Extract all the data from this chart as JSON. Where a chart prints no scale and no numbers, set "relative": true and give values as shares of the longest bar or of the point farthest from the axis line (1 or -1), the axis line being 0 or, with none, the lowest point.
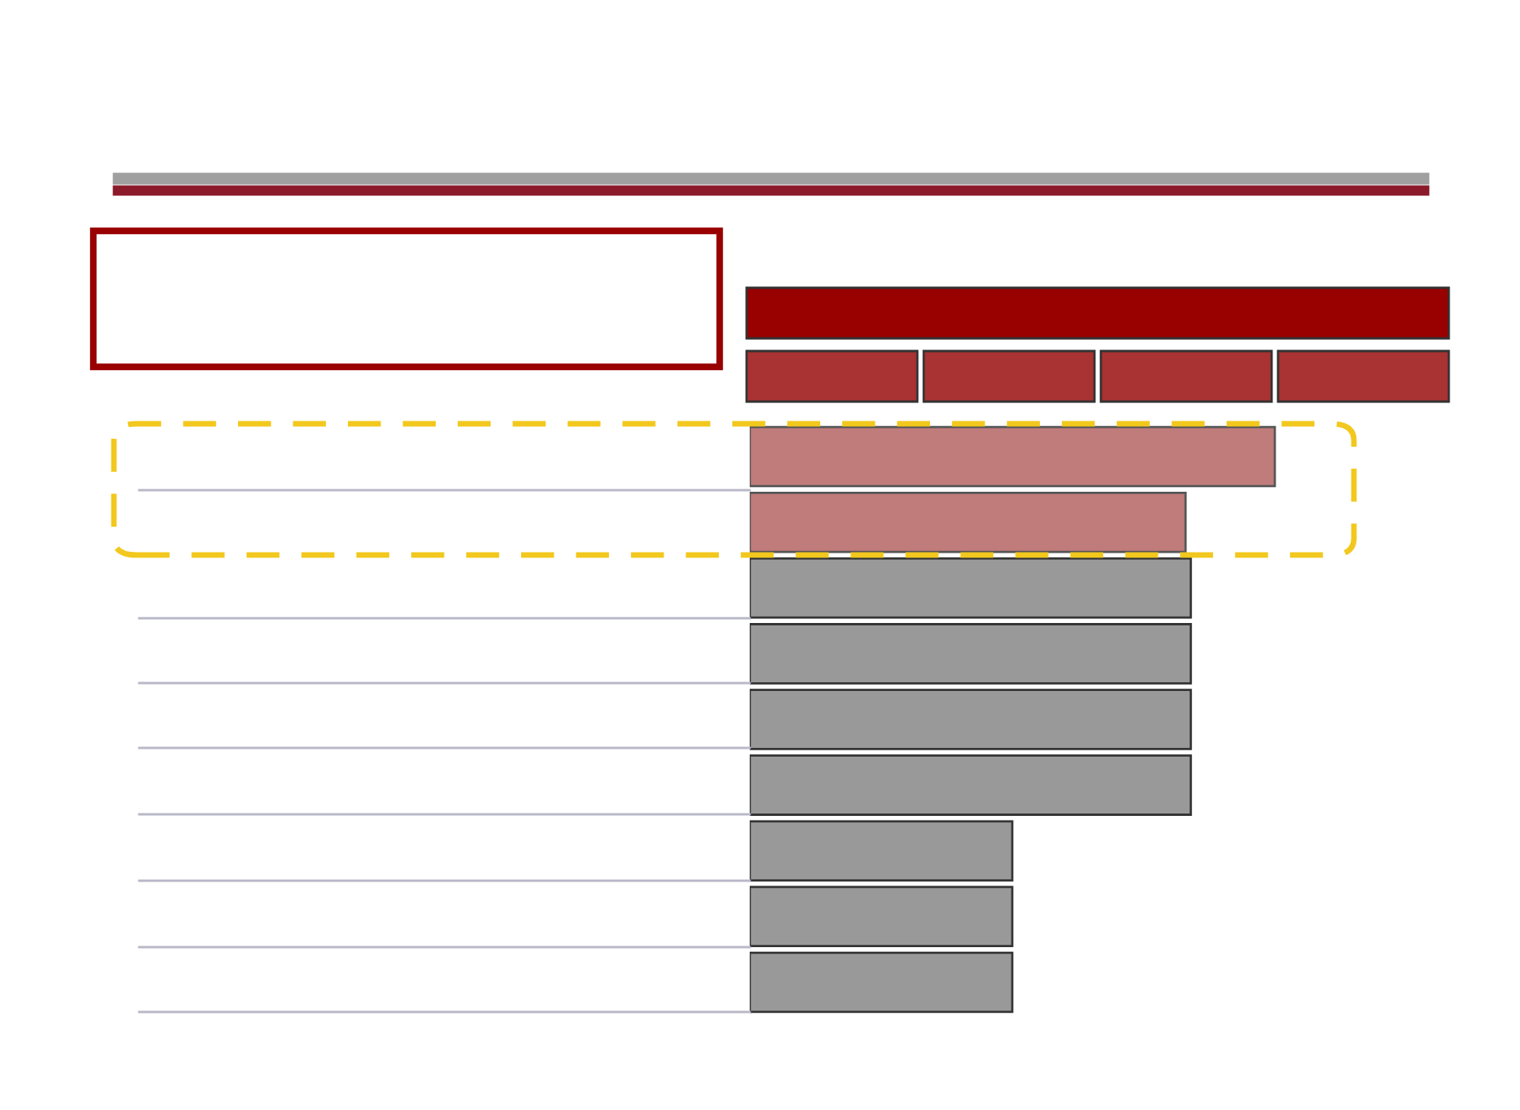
{
  "chart_data": {
    "type": "bar",
    "orientation": "horizontal",
    "relative": true,
    "categories": [
      null,
      null,
      null,
      null,
      null,
      null,
      null,
      null,
      null
    ],
    "values": [
      1,
      0.83,
      0.84,
      0.84,
      0.84,
      0.84,
      0.5,
      0.5,
      0.5
    ],
    "colors": [
      "#c07b7b",
      "#c07b7b",
      "#999999",
      "#999999",
      "#999999",
      "#999999",
      "#999999",
      "#999999",
      "#999999"
    ],
    "grid": false,
    "legend": false
  }
}
